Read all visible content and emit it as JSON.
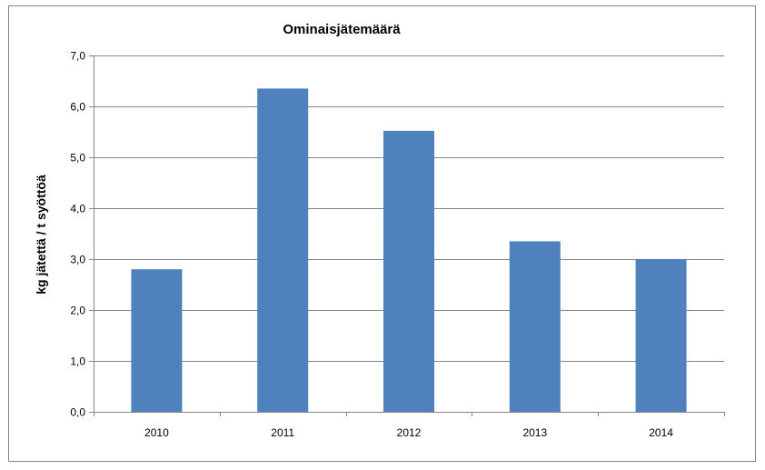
{
  "chart_data": {
    "type": "bar",
    "title": "Ominaisjätemäärä",
    "xlabel": "",
    "ylabel": "kg jätettä / t syöttöä",
    "categories": [
      "2010",
      "2011",
      "2012",
      "2013",
      "2014"
    ],
    "values": [
      2.8,
      6.35,
      5.52,
      3.35,
      3.0
    ],
    "ylim": [
      0,
      7
    ],
    "yticks": [
      "0,0",
      "1,0",
      "2,0",
      "3,0",
      "4,0",
      "5,0",
      "6,0",
      "7,0"
    ],
    "grid": true,
    "legend": "none",
    "colors": {
      "bar": "#4F81BD",
      "grid": "#868686",
      "frame": "#868686"
    }
  }
}
